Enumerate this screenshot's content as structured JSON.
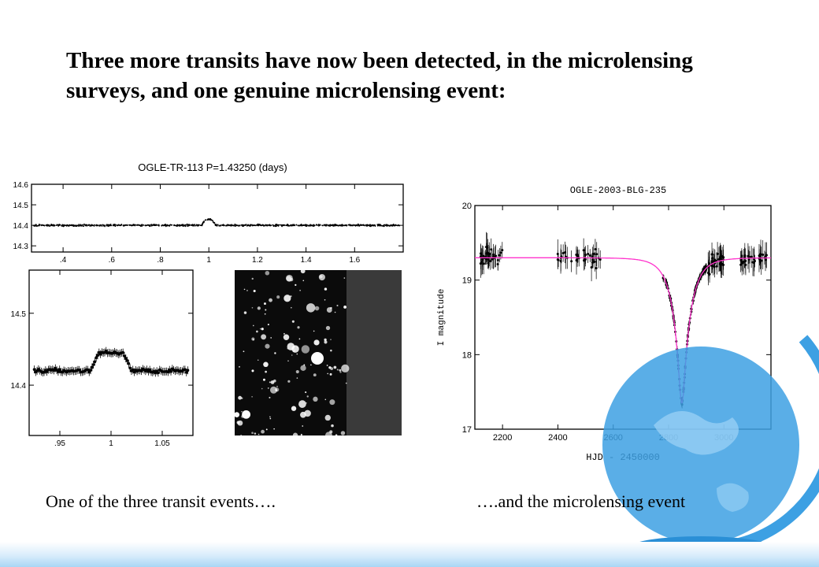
{
  "slide": {
    "title": "Three more transits have now been detected, in the microlensing surveys, and one genuine microlensing event:",
    "caption_left": "One of the three transit events….",
    "caption_right": "….and the microlensing event"
  },
  "colors": {
    "model_curve": "#ff33cc",
    "data": "#000000",
    "globe_blue": "#3da0e3"
  },
  "chart_data": [
    {
      "type": "scatter",
      "title": "OGLE-TR-113  P=1.43250 (days)",
      "xlabel": "",
      "ylabel": "",
      "xlim": [
        0.27,
        1.8
      ],
      "ylim": [
        14.6,
        14.27
      ],
      "x_ticks": [
        0.4,
        0.6,
        0.8,
        1,
        1.2,
        1.4,
        1.6
      ],
      "x_tick_labels": [
        ".4",
        ".6",
        ".8",
        "1",
        "1.2",
        "1.4",
        "1.6"
      ],
      "y_ticks": [
        14.3,
        14.4,
        14.5,
        14.6
      ],
      "y_tick_labels": [
        "14.3",
        "14.4",
        "14.5",
        "14.6"
      ],
      "series": [
        {
          "baseline_mag": 14.4,
          "transit_center": 1.0,
          "transit_depth": 0.03,
          "transit_halfwidth": 0.03
        }
      ]
    },
    {
      "type": "scatter",
      "title": "",
      "xlabel": "",
      "ylabel": "",
      "xlim": [
        0.92,
        1.08
      ],
      "ylim": [
        14.56,
        14.33
      ],
      "x_ticks": [
        0.95,
        1,
        1.05
      ],
      "x_tick_labels": [
        ".95",
        "1",
        "1.05"
      ],
      "y_ticks": [
        14.4,
        14.5
      ],
      "y_tick_labels": [
        "14.4",
        "14.5"
      ],
      "series": [
        {
          "baseline_mag": 14.42,
          "min_mag": 14.445,
          "ingress": [
            0.98,
            0.988
          ],
          "egress": [
            1.012,
            1.02
          ],
          "x_range": [
            0.925,
            1.075
          ]
        }
      ]
    },
    {
      "type": "line",
      "title": "OGLE-2003-BLG-235",
      "xlabel": "HJD - 2450000",
      "ylabel": "I magnitude",
      "xlim": [
        2100,
        3170
      ],
      "ylim": [
        20,
        17
      ],
      "x_ticks": [
        2200,
        2400,
        2600,
        2800,
        3000
      ],
      "y_ticks": [
        17,
        18,
        19,
        20
      ],
      "series": [
        {
          "name": "",
          "model": {
            "t0": 2848,
            "baseline_mag": 19.3,
            "peak_mag": 17.35,
            "tE": 60
          }
        }
      ],
      "observing_seasons": [
        [
          2120,
          2200
        ],
        [
          2380,
          2580
        ],
        [
          2780,
          3000
        ],
        [
          3060,
          3160
        ]
      ]
    }
  ]
}
